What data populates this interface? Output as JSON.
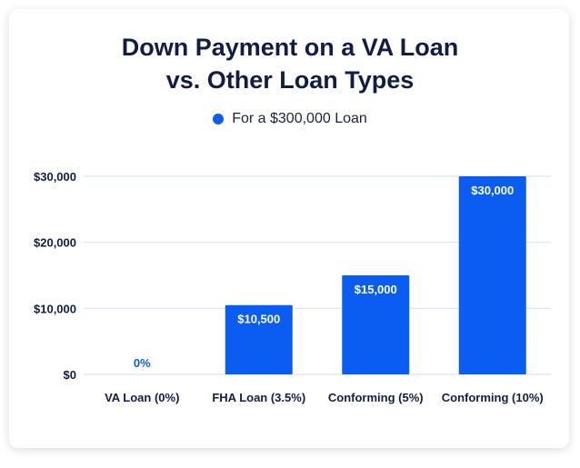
{
  "chart_data": {
    "type": "bar",
    "title_lines": [
      "Down Payment on a VA Loan",
      "vs. Other Loan Types"
    ],
    "legend": [
      {
        "name": "For a $300,000 Loan",
        "color": "#0a5df0"
      }
    ],
    "legend_position": "top-center",
    "categories": [
      "VA Loan (0%)",
      "FHA Loan (3.5%)",
      "Conforming (5%)",
      "Conforming (10%)"
    ],
    "series": [
      {
        "name": "For a $300,000 Loan",
        "values": [
          0,
          10500,
          15000,
          30000
        ],
        "labels": [
          "0%",
          "$10,500",
          "$15,000",
          "$30,000"
        ]
      }
    ],
    "y_ticks": [
      {
        "value": 0,
        "label": "$0"
      },
      {
        "value": 10000,
        "label": "$10,000"
      },
      {
        "value": 20000,
        "label": "$20,000"
      },
      {
        "value": 30000,
        "label": "$30,000"
      }
    ],
    "ylim": [
      0,
      30000
    ],
    "grid": true,
    "bar_color": "#0a5df0",
    "xlabel": "",
    "ylabel": ""
  }
}
